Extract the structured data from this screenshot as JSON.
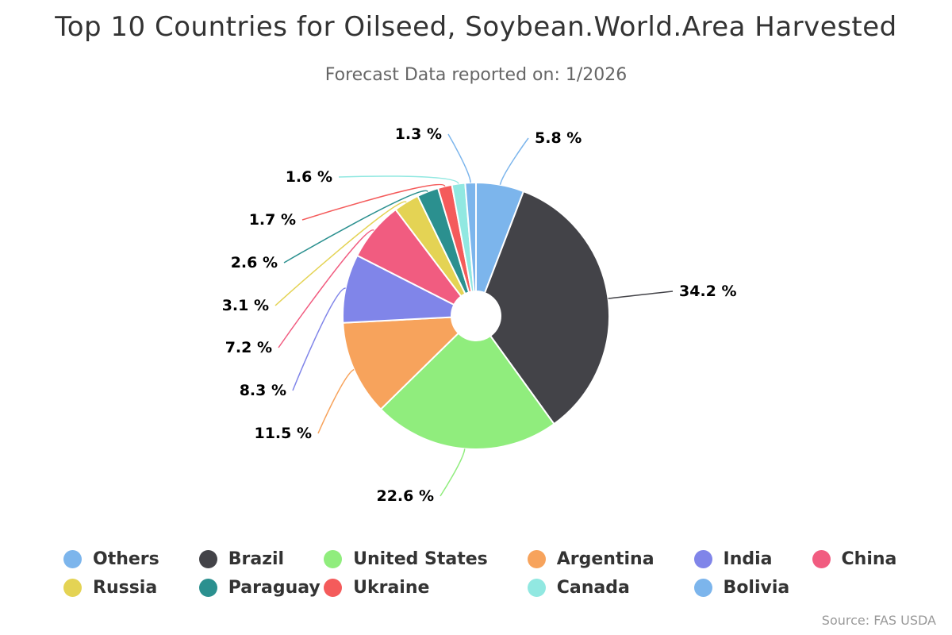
{
  "chart_data": {
    "type": "pie",
    "title": "Top 10 Countries for Oilseed, Soybean.World.Area Harvested",
    "subtitle": "Forecast Data reported on: 1/2026",
    "unit": "%",
    "categories": [
      "Others",
      "Brazil",
      "United States",
      "Argentina",
      "India",
      "China",
      "Russia",
      "Paraguay",
      "Ukraine",
      "Canada",
      "Bolivia"
    ],
    "values": [
      5.8,
      34.2,
      22.6,
      11.5,
      8.3,
      7.2,
      3.1,
      2.6,
      1.7,
      1.6,
      1.3
    ],
    "value_labels": [
      "5.8 %",
      "34.2 %",
      "22.6 %",
      "11.5 %",
      "8.3 %",
      "7.2 %",
      "3.1 %",
      "2.6 %",
      "1.7 %",
      "1.6 %",
      "1.3 %"
    ],
    "colors": [
      "#7cb5ec",
      "#434348",
      "#90ed7d",
      "#f7a35c",
      "#8085e9",
      "#f15c80",
      "#e4d354",
      "#2b908f",
      "#f45b5b",
      "#91e8e1",
      "#7cb5ec"
    ],
    "legend_position": "bottom",
    "donut": true
  },
  "source": "Source: FAS USDA"
}
